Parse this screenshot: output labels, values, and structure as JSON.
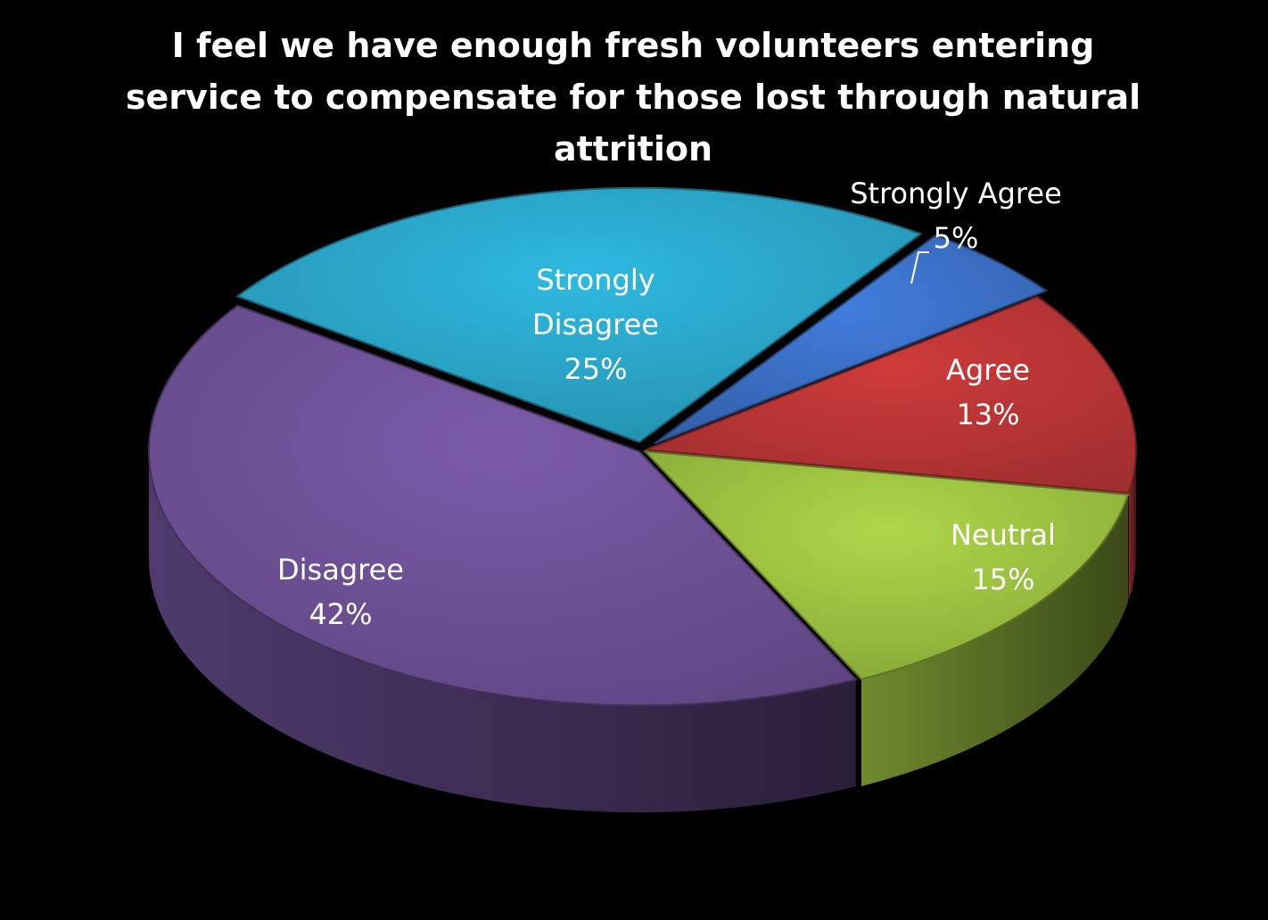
{
  "chart_data": {
    "type": "pie",
    "title": [
      "I feel we have enough fresh volunteers entering",
      "service to compensate for those lost through natural",
      "attrition"
    ],
    "categories": [
      "Strongly Agree",
      "Agree",
      "Neutral",
      "Disagree",
      "Strongly Disagree"
    ],
    "values": [
      5,
      13,
      15,
      42,
      25
    ],
    "value_labels": [
      "5%",
      "13%",
      "15%",
      "42%",
      "25%"
    ],
    "label_lines": [
      [
        "Strongly Agree",
        "5%"
      ],
      [
        "Agree",
        "13%"
      ],
      [
        "Neutral",
        "15%"
      ],
      [
        "Disagree",
        "42%"
      ],
      [
        "Strongly",
        "Disagree",
        "25%"
      ]
    ],
    "colors": [
      "#3a6fc4",
      "#b93535",
      "#9bc040",
      "#6e5197",
      "#2aa5c8"
    ],
    "style": "3d-exploded",
    "legend": "none",
    "background": "#000000"
  }
}
